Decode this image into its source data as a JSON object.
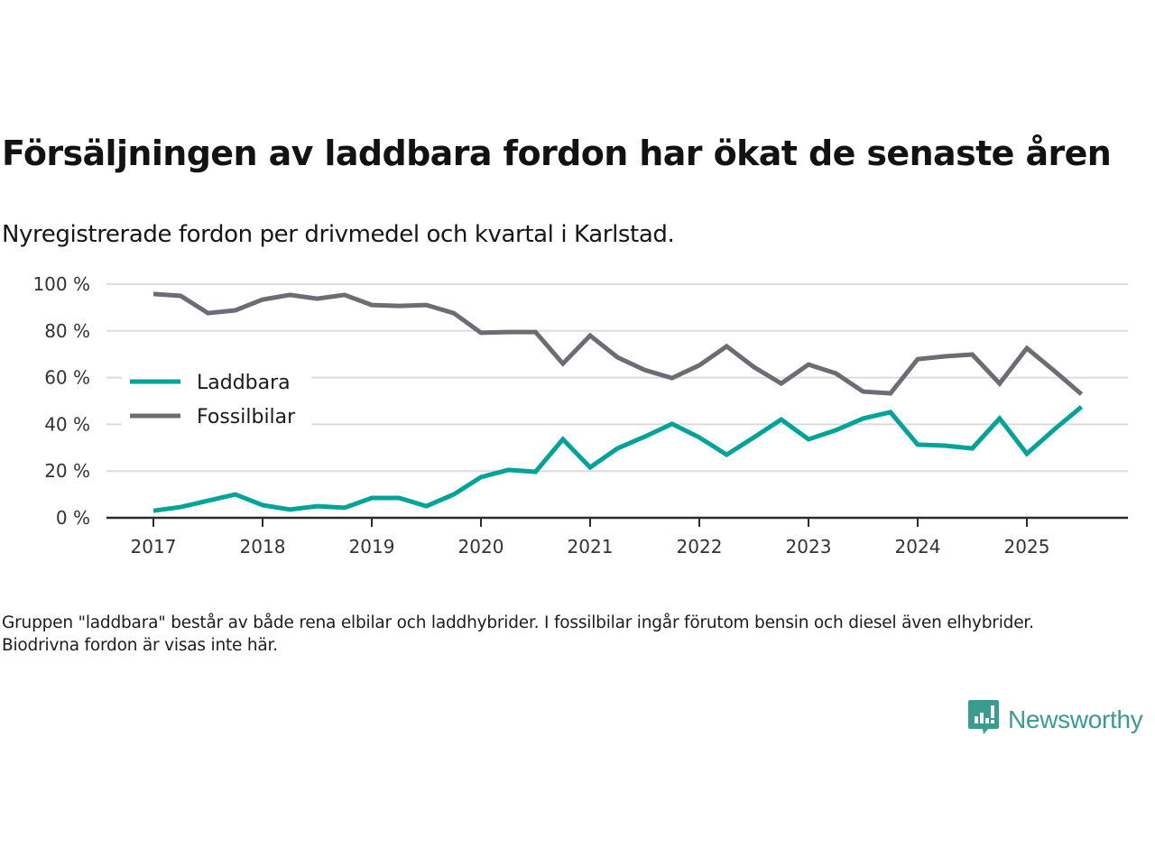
{
  "header": {
    "title": "Försäljningen av laddbara fordon har ökat de senaste åren",
    "subtitle": "Nyregistrerade fordon per drivmedel och kvartal i Karlstad."
  },
  "footnote": "Gruppen \"laddbara\" består av både rena elbilar och laddhybrider. I fossilbilar ingår förutom bensin och diesel även elhybrider. Biodrivna fordon är visas inte här.",
  "brand": {
    "name": "Newsworthy",
    "icon": "newsworthy-chart-bubble-icon",
    "color": "#3a9c8e"
  },
  "chart_data": {
    "type": "line",
    "title": "Försäljningen av laddbara fordon har ökat de senaste åren",
    "subtitle": "Nyregistrerade fordon per drivmedel och kvartal i Karlstad.",
    "xlabel": "",
    "ylabel": "",
    "x_unit": "quarter",
    "x": [
      "2017-Q1",
      "2017-Q2",
      "2017-Q3",
      "2017-Q4",
      "2018-Q1",
      "2018-Q2",
      "2018-Q3",
      "2018-Q4",
      "2019-Q1",
      "2019-Q2",
      "2019-Q3",
      "2019-Q4",
      "2020-Q1",
      "2020-Q2",
      "2020-Q3",
      "2020-Q4",
      "2021-Q1",
      "2021-Q2",
      "2021-Q3",
      "2021-Q4",
      "2022-Q1",
      "2022-Q2",
      "2022-Q3",
      "2022-Q4",
      "2023-Q1",
      "2023-Q2",
      "2023-Q3",
      "2023-Q4",
      "2024-Q1",
      "2024-Q2",
      "2024-Q3",
      "2024-Q4",
      "2025-Q1",
      "2025-Q2",
      "2025-Q3"
    ],
    "xticks": [
      "2017",
      "2018",
      "2019",
      "2020",
      "2021",
      "2022",
      "2023",
      "2024",
      "2025"
    ],
    "xlim_years": [
      2016.6,
      2026.0
    ],
    "yticks": [
      0,
      20,
      40,
      60,
      80,
      100
    ],
    "ytick_suffix": " %",
    "ylim": [
      0,
      100
    ],
    "grid": true,
    "legend_position": "center-left",
    "series": [
      {
        "name": "Laddbara",
        "color": "#00a398",
        "values": [
          3,
          4.6,
          7.3,
          10,
          5.4,
          3.5,
          5,
          4.3,
          8.5,
          8.5,
          5,
          10,
          17.4,
          20.5,
          19.7,
          33.6,
          21.6,
          29.7,
          34.7,
          40.2,
          34.4,
          27,
          34.4,
          42.1,
          33.6,
          37.5,
          42.5,
          45.2,
          31.3,
          30.9,
          29.7,
          42.5,
          27.4,
          37.8,
          47.5
        ]
      },
      {
        "name": "Fossilbilar",
        "color": "#6d6c72",
        "values": [
          95.8,
          95,
          87.6,
          88.8,
          93.4,
          95.4,
          93.8,
          95.4,
          91.1,
          90.7,
          91.1,
          87.6,
          79.2,
          79.5,
          79.5,
          66,
          78,
          68.7,
          63.3,
          59.8,
          65.3,
          73.4,
          64.5,
          57.5,
          65.6,
          61.8,
          54,
          53.3,
          67.9,
          69.1,
          69.9,
          57.5,
          72.6,
          62.9,
          52.9
        ]
      }
    ]
  }
}
